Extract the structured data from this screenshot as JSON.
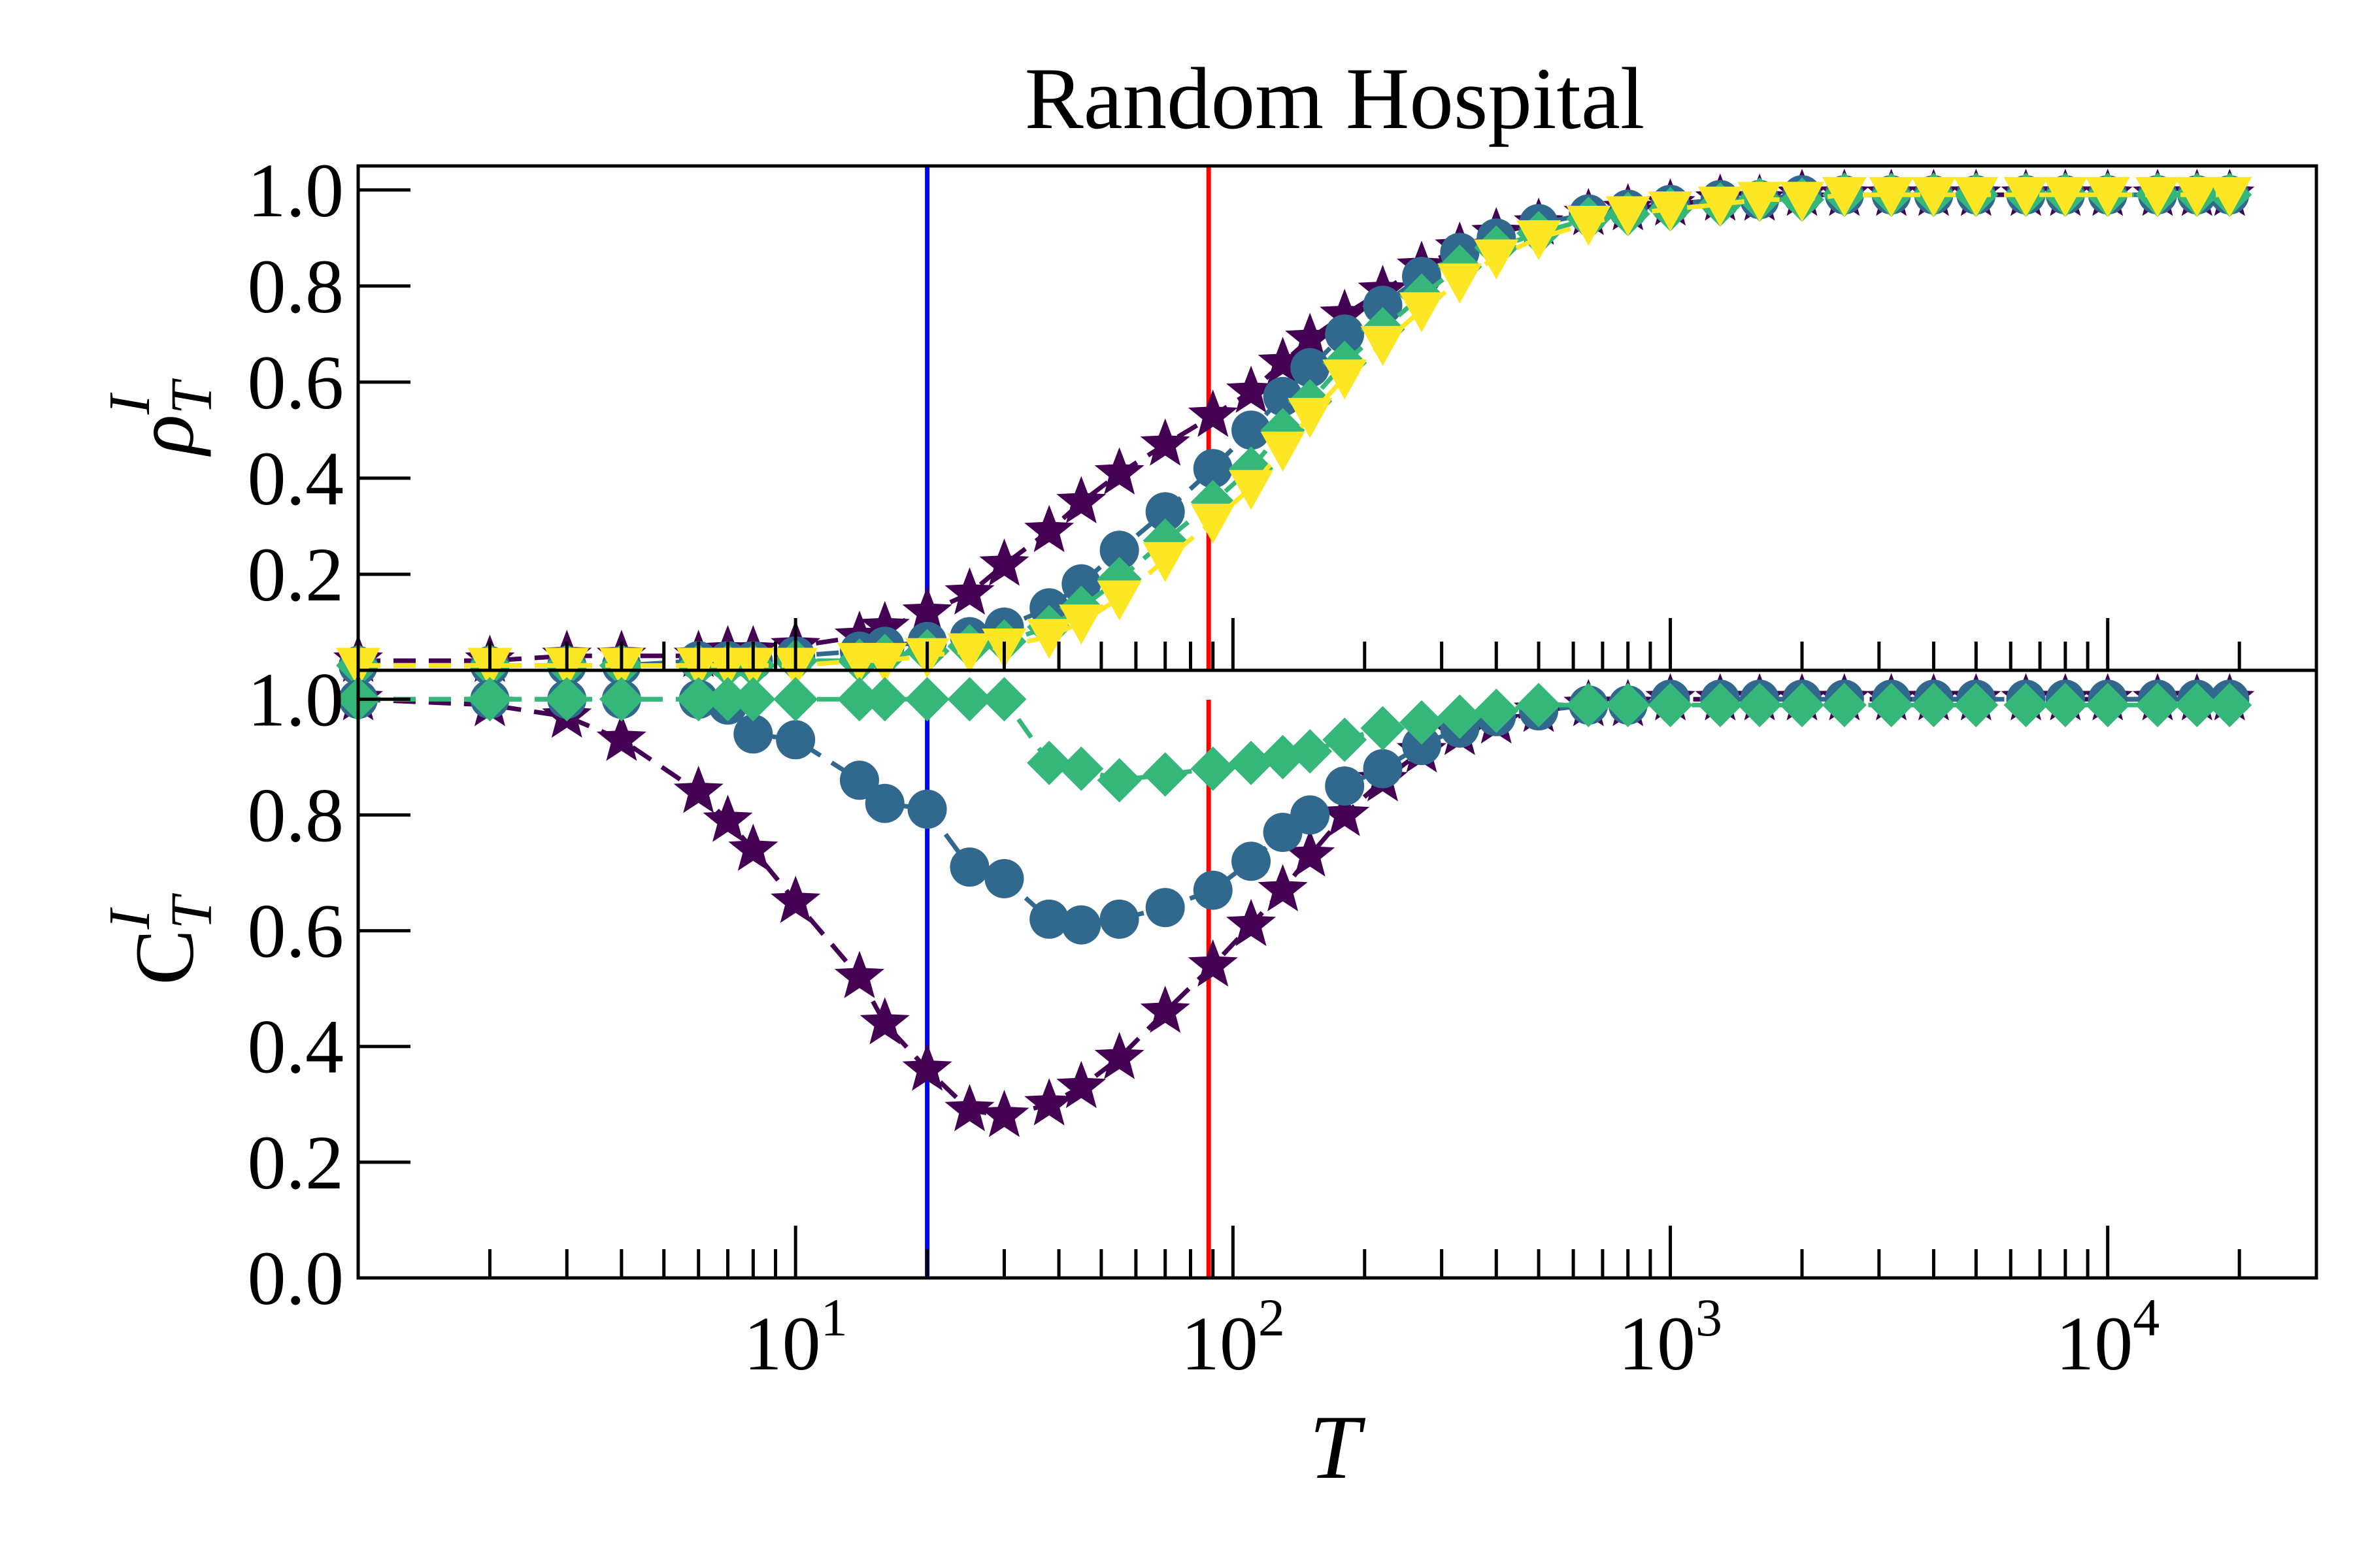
{
  "chart_data": [
    {
      "type": "line",
      "panel": "top",
      "title": "Random Hospital",
      "xlabel": "",
      "ylabel": "ρ",
      "ylabel_sup": "I",
      "ylabel_sub": "T",
      "xscale": "log",
      "xlim": [
        1,
        30000
      ],
      "ylim": [
        0.0,
        1.05
      ],
      "yticks": [
        0.2,
        0.4,
        0.6,
        0.8,
        1.0
      ],
      "ytick_labels": [
        "0.2",
        "0.4",
        "0.6",
        "0.8",
        "1.0"
      ],
      "vlines": [
        {
          "x": 20,
          "color": "#0000ff"
        },
        {
          "x": 88,
          "color": "#ff0000"
        }
      ],
      "x": [
        1,
        2,
        3,
        4,
        6,
        7,
        8,
        10,
        14,
        16,
        20,
        25,
        30,
        38,
        45,
        55,
        70,
        90,
        110,
        130,
        150,
        180,
        220,
        270,
        330,
        400,
        500,
        650,
        800,
        1000,
        1300,
        1600,
        2000,
        2500,
        3200,
        4000,
        5000,
        6500,
        8000,
        10000,
        13000,
        16000,
        19000
      ],
      "series": [
        {
          "marker": "star",
          "color": "#440154",
          "values": [
            0.02,
            0.02,
            0.03,
            0.03,
            0.03,
            0.04,
            0.04,
            0.05,
            0.07,
            0.09,
            0.12,
            0.16,
            0.22,
            0.29,
            0.35,
            0.41,
            0.47,
            0.53,
            0.58,
            0.64,
            0.69,
            0.74,
            0.79,
            0.84,
            0.88,
            0.91,
            0.93,
            0.95,
            0.96,
            0.97,
            0.98,
            0.98,
            0.99,
            0.99,
            0.99,
            0.99,
            0.99,
            0.99,
            0.99,
            0.99,
            0.99,
            0.99,
            0.99
          ]
        },
        {
          "marker": "circle",
          "color": "#31688e",
          "values": [
            0.01,
            0.01,
            0.01,
            0.01,
            0.02,
            0.02,
            0.02,
            0.03,
            0.04,
            0.05,
            0.06,
            0.07,
            0.09,
            0.13,
            0.18,
            0.25,
            0.33,
            0.42,
            0.5,
            0.57,
            0.63,
            0.7,
            0.76,
            0.82,
            0.87,
            0.9,
            0.93,
            0.95,
            0.96,
            0.97,
            0.98,
            0.98,
            0.99,
            0.99,
            0.99,
            0.99,
            0.99,
            0.99,
            0.99,
            0.99,
            0.99,
            0.99,
            0.99
          ]
        },
        {
          "marker": "diamond",
          "color": "#35b779",
          "values": [
            0.01,
            0.01,
            0.01,
            0.01,
            0.01,
            0.01,
            0.01,
            0.02,
            0.02,
            0.03,
            0.04,
            0.05,
            0.06,
            0.09,
            0.13,
            0.19,
            0.27,
            0.35,
            0.42,
            0.5,
            0.56,
            0.64,
            0.71,
            0.78,
            0.84,
            0.88,
            0.91,
            0.94,
            0.95,
            0.96,
            0.97,
            0.98,
            0.98,
            0.99,
            0.99,
            0.99,
            0.99,
            0.99,
            0.99,
            0.99,
            0.99,
            0.99,
            0.99
          ]
        },
        {
          "marker": "triangle-down",
          "color": "#fde725",
          "values": [
            0.01,
            0.01,
            0.01,
            0.01,
            0.01,
            0.01,
            0.01,
            0.01,
            0.02,
            0.02,
            0.03,
            0.04,
            0.05,
            0.07,
            0.1,
            0.15,
            0.23,
            0.31,
            0.38,
            0.46,
            0.53,
            0.61,
            0.68,
            0.75,
            0.81,
            0.86,
            0.9,
            0.93,
            0.95,
            0.96,
            0.97,
            0.98,
            0.98,
            0.99,
            0.99,
            0.99,
            0.99,
            0.99,
            0.99,
            0.99,
            0.99,
            0.99,
            0.99
          ]
        }
      ]
    },
    {
      "type": "line",
      "panel": "bottom",
      "xlabel": "T",
      "ylabel": "C",
      "ylabel_sup": "I",
      "ylabel_sub": "T",
      "xscale": "log",
      "xlim": [
        1,
        30000
      ],
      "ylim": [
        0.0,
        1.05
      ],
      "yticks": [
        0.0,
        0.2,
        0.4,
        0.6,
        0.8,
        1.0
      ],
      "ytick_labels": [
        "0.0",
        "0.2",
        "0.4",
        "0.6",
        "0.8",
        "1.0"
      ],
      "xticks": [
        10,
        100,
        1000,
        10000
      ],
      "xtick_labels": [
        {
          "base": "10",
          "exp": "1"
        },
        {
          "base": "10",
          "exp": "2"
        },
        {
          "base": "10",
          "exp": "3"
        },
        {
          "base": "10",
          "exp": "4"
        }
      ],
      "vlines": [
        {
          "x": 20,
          "color": "#0000ff"
        },
        {
          "x": 88,
          "color": "#ff0000"
        }
      ],
      "x": [
        1,
        2,
        3,
        4,
        6,
        7,
        8,
        10,
        14,
        16,
        20,
        25,
        30,
        38,
        45,
        55,
        70,
        90,
        110,
        130,
        150,
        180,
        220,
        270,
        330,
        400,
        500,
        650,
        800,
        1000,
        1300,
        1600,
        2000,
        2500,
        3200,
        4000,
        5000,
        6500,
        8000,
        10000,
        13000,
        16000,
        19000
      ],
      "series": [
        {
          "marker": "star",
          "color": "#440154",
          "values": [
            1.0,
            0.99,
            0.97,
            0.93,
            0.84,
            0.79,
            0.74,
            0.65,
            0.52,
            0.44,
            0.36,
            0.29,
            0.28,
            0.3,
            0.33,
            0.38,
            0.46,
            0.54,
            0.61,
            0.67,
            0.73,
            0.8,
            0.86,
            0.91,
            0.94,
            0.96,
            0.98,
            0.99,
            0.99,
            1.0,
            1.0,
            1.0,
            1.0,
            1.0,
            1.0,
            1.0,
            1.0,
            1.0,
            1.0,
            1.0,
            1.0,
            1.0,
            1.0
          ]
        },
        {
          "marker": "circle",
          "color": "#31688e",
          "values": [
            1.0,
            1.0,
            1.0,
            1.0,
            1.0,
            0.99,
            0.94,
            0.93,
            0.86,
            0.82,
            0.81,
            0.71,
            0.69,
            0.62,
            0.61,
            0.62,
            0.64,
            0.67,
            0.72,
            0.77,
            0.8,
            0.85,
            0.88,
            0.92,
            0.95,
            0.97,
            0.98,
            0.99,
            0.99,
            1.0,
            1.0,
            1.0,
            1.0,
            1.0,
            1.0,
            1.0,
            1.0,
            1.0,
            1.0,
            1.0,
            1.0,
            1.0,
            1.0
          ]
        },
        {
          "marker": "diamond",
          "color": "#35b779",
          "values": [
            1.0,
            1.0,
            1.0,
            1.0,
            1.0,
            1.0,
            1.0,
            1.0,
            1.0,
            1.0,
            1.0,
            1.0,
            1.0,
            0.89,
            0.88,
            0.86,
            0.87,
            0.88,
            0.89,
            0.9,
            0.91,
            0.93,
            0.95,
            0.96,
            0.97,
            0.98,
            0.99,
            0.99,
            0.99,
            0.99,
            0.99,
            0.99,
            0.99,
            0.99,
            0.99,
            0.99,
            0.99,
            0.99,
            0.99,
            0.99,
            0.99,
            0.99,
            0.99
          ]
        }
      ]
    }
  ]
}
